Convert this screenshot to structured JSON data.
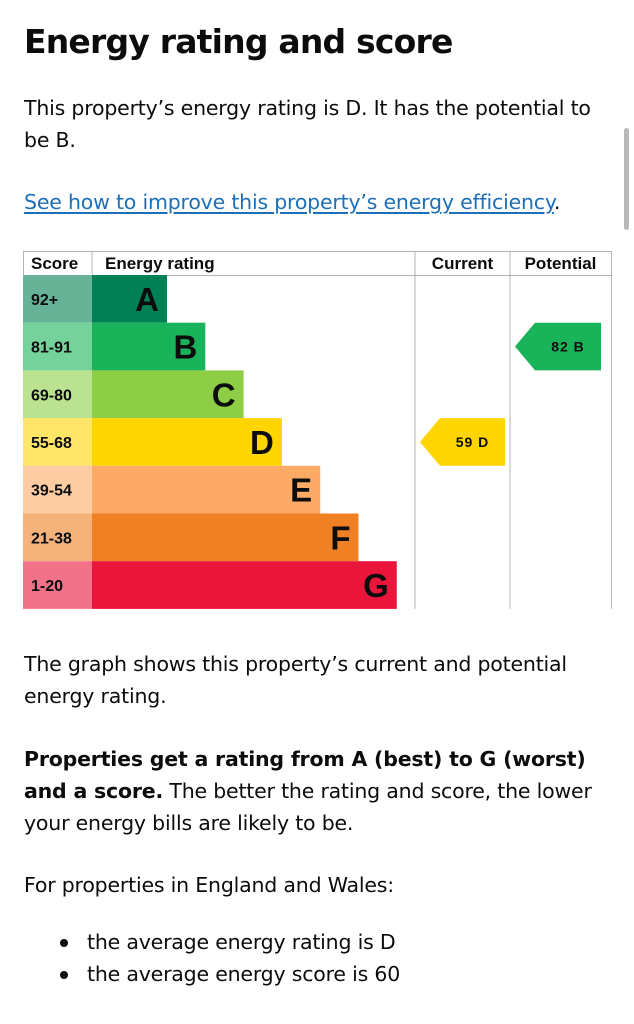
{
  "page": {
    "title": "Energy rating and score",
    "intro": "This property’s energy rating is D. It has the potential to be B.",
    "link_text": "See how to improve this property’s energy efficiency",
    "link_suffix": ".",
    "graph_caption": "The graph shows this property’s current and potential energy rating.",
    "ratings_bold": "Properties get a rating from A (best) to G (worst) and a score.",
    "ratings_rest": " The better the rating and score, the lower your energy bills are likely to be.",
    "england_wales": "For properties in England and Wales:",
    "bullets": [
      "the average energy rating is D",
      "the average energy score is 60"
    ]
  },
  "chart_data": {
    "type": "bar",
    "headers": {
      "score": "Score",
      "rating": "Energy rating",
      "current": "Current",
      "potential": "Potential"
    },
    "bands": [
      {
        "letter": "A",
        "range": "92+",
        "color": "#008054",
        "score_color": "#66b398"
      },
      {
        "letter": "B",
        "range": "81-91",
        "color": "#19b459",
        "score_color": "#75d29b"
      },
      {
        "letter": "C",
        "range": "69-80",
        "color": "#8dce46",
        "score_color": "#bbe290"
      },
      {
        "letter": "D",
        "range": "55-68",
        "color": "#ffd500",
        "score_color": "#ffe666"
      },
      {
        "letter": "E",
        "range": "39-54",
        "color": "#fcaa65",
        "score_color": "#fdcca3"
      },
      {
        "letter": "F",
        "range": "21-38",
        "color": "#ef8023",
        "score_color": "#f5b37b"
      },
      {
        "letter": "G",
        "range": "1-20",
        "color": "#e9153b",
        "score_color": "#f27389"
      }
    ],
    "current": {
      "score": 59,
      "letter": "D",
      "label": "59 D",
      "color": "#ffd500",
      "text_color": "#0b0c0c"
    },
    "potential": {
      "score": 82,
      "letter": "B",
      "label": "82 B",
      "color": "#19b459",
      "text_color": "#0b0c0c"
    }
  }
}
